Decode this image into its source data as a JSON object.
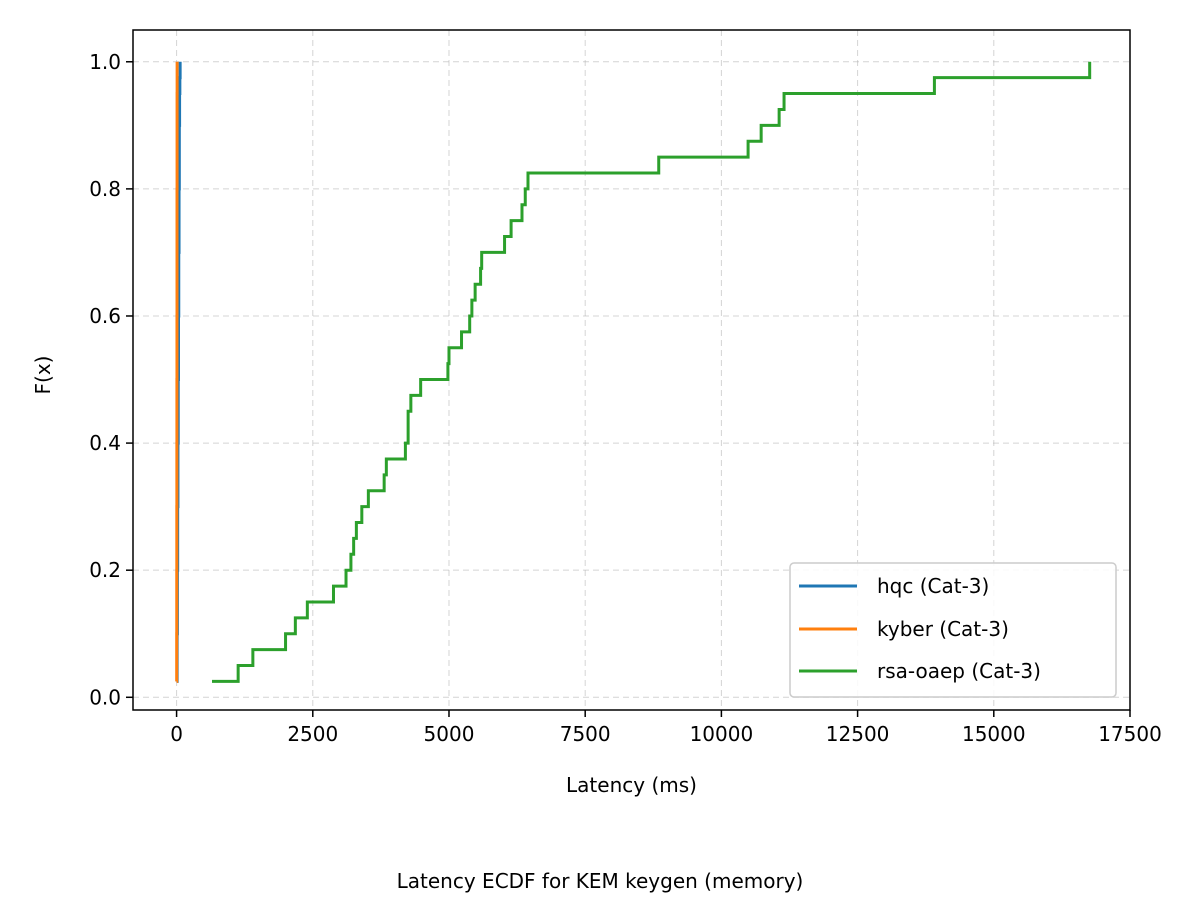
{
  "chart_data": {
    "type": "line",
    "title": "",
    "caption": "Latency ECDF for KEM keygen (memory)",
    "xlabel": "Latency (ms)",
    "ylabel": "F(x)",
    "xlim": [
      -800,
      17500
    ],
    "ylim": [
      -0.02,
      1.05
    ],
    "xticks": [
      0,
      2500,
      5000,
      7500,
      10000,
      12500,
      15000,
      17500
    ],
    "yticks": [
      0.0,
      0.2,
      0.4,
      0.6,
      0.8,
      1.0
    ],
    "xtick_labels": [
      "0",
      "2500",
      "5000",
      "7500",
      "10000",
      "12500",
      "15000",
      "17500"
    ],
    "ytick_labels": [
      "0.0",
      "0.2",
      "0.4",
      "0.6",
      "0.8",
      "1.0"
    ],
    "grid": true,
    "legend_position": "lower-right",
    "series": [
      {
        "name": "hqc (Cat-3)",
        "color": "#1f77b4",
        "x": [
          5,
          10,
          15,
          20,
          25,
          30,
          35,
          40,
          45,
          50,
          55,
          60,
          65
        ],
        "y": [
          0.025,
          0.1,
          0.2,
          0.3,
          0.4,
          0.5,
          0.6,
          0.7,
          0.8,
          0.9,
          0.95,
          0.975,
          1.0
        ]
      },
      {
        "name": "kyber (Cat-3)",
        "color": "#ff7f0e",
        "x": [
          1,
          2,
          3,
          4,
          5,
          6,
          7,
          8,
          9,
          10
        ],
        "y": [
          0.025,
          0.1,
          0.2,
          0.3,
          0.4,
          0.5,
          0.6,
          0.8,
          0.95,
          1.0
        ]
      },
      {
        "name": "rsa-oaep (Cat-3)",
        "color": "#2ca02c",
        "x": [
          650,
          1130,
          1400,
          2000,
          2180,
          2400,
          2880,
          3110,
          3200,
          3250,
          3300,
          3400,
          3520,
          3810,
          3850,
          4200,
          4250,
          4300,
          4480,
          4980,
          5000,
          5230,
          5380,
          5420,
          5480,
          5580,
          5600,
          6020,
          6140,
          6340,
          6400,
          6450,
          8850,
          10490,
          10730,
          11060,
          11150,
          13910,
          16760
        ],
        "y": [
          0.025,
          0.05,
          0.075,
          0.1,
          0.125,
          0.15,
          0.175,
          0.2,
          0.225,
          0.25,
          0.275,
          0.3,
          0.325,
          0.35,
          0.375,
          0.4,
          0.45,
          0.475,
          0.5,
          0.525,
          0.55,
          0.575,
          0.6,
          0.625,
          0.65,
          0.675,
          0.7,
          0.725,
          0.75,
          0.775,
          0.8,
          0.825,
          0.85,
          0.875,
          0.9,
          0.925,
          0.95,
          0.975,
          1.0
        ]
      }
    ]
  }
}
